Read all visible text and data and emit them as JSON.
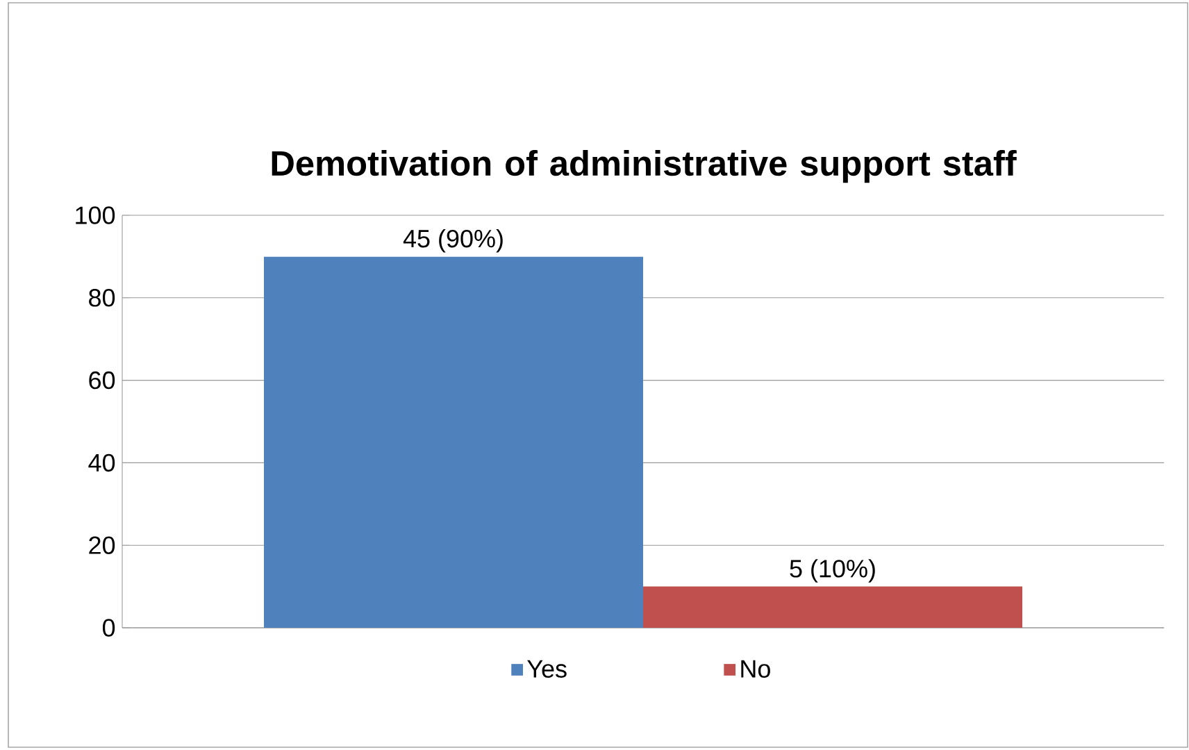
{
  "chart_data": {
    "type": "bar",
    "title": "Demotivation of administrative support staff",
    "categories": [
      null
    ],
    "series": [
      {
        "name": "Yes",
        "color": "#4f81bd",
        "values": [
          90
        ],
        "value_labels": [
          "45 (90%)"
        ]
      },
      {
        "name": "No",
        "color": "#c0504d",
        "values": [
          10
        ],
        "value_labels": [
          "5 (10%)"
        ]
      }
    ],
    "ylim": [
      0,
      100
    ],
    "yticks": [
      0,
      20,
      40,
      60,
      80,
      100
    ],
    "grid": "y",
    "legend": "bottom"
  }
}
